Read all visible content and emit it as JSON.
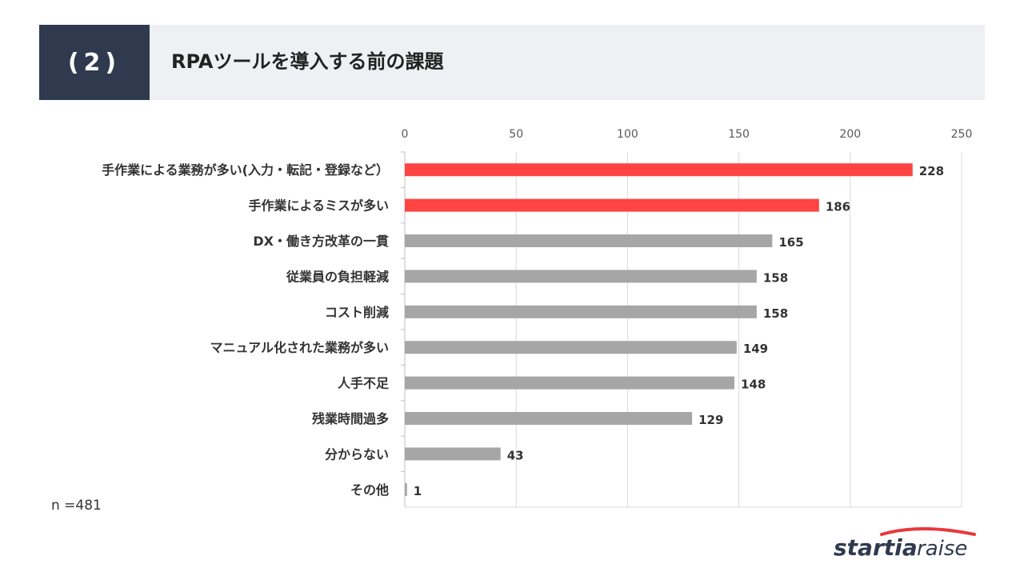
{
  "header": {
    "number": "(2)",
    "title": "RPAツールを導入する前の課題"
  },
  "sample_size": "n =481",
  "logo": {
    "text_bold": "startia",
    "text_light": "raise",
    "accent_color": "#e8383d"
  },
  "colors": {
    "highlight": "#ff4444",
    "normal": "#a6a6a6",
    "header_dark": "#2f3a4f",
    "header_light": "#eff0f4"
  },
  "chart_data": {
    "type": "bar",
    "orientation": "horizontal",
    "xlim": [
      0,
      250
    ],
    "ticks": [
      0,
      50,
      100,
      150,
      200,
      250
    ],
    "grid": true,
    "categories": [
      "手作業による業務が多い(入力・転記・登録など）",
      "手作業によるミスが多い",
      "DX・働き方改革の一貫",
      "従業員の負担軽減",
      "コスト削減",
      "マニュアル化された業務が多い",
      "人手不足",
      "残業時間過多",
      "分からない",
      "その他"
    ],
    "values": [
      228,
      186,
      165,
      158,
      158,
      149,
      148,
      129,
      43,
      1
    ],
    "highlighted": [
      true,
      true,
      false,
      false,
      false,
      false,
      false,
      false,
      false,
      false
    ]
  }
}
